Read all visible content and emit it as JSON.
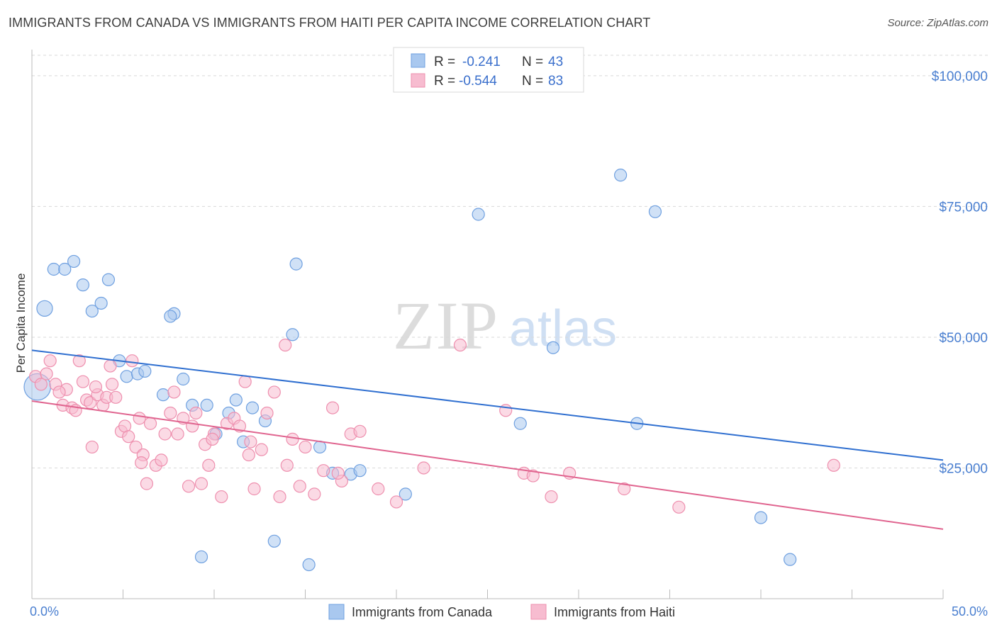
{
  "title": "IMMIGRANTS FROM CANADA VS IMMIGRANTS FROM HAITI PER CAPITA INCOME CORRELATION CHART",
  "source": "Source: ZipAtlas.com",
  "watermark": {
    "zip": "ZIP",
    "atlas": "atlas"
  },
  "legend": {
    "r_label": "R =",
    "n_label": "N =",
    "canada": {
      "r": "-0.241",
      "n": "43"
    },
    "haiti": {
      "r": "-0.544",
      "n": "83"
    }
  },
  "colors": {
    "canada_fill": "#a9c8ef",
    "canada_stroke": "#6fa0e0",
    "canada_line": "#2f6fd0",
    "haiti_fill": "#f7bcd0",
    "haiti_stroke": "#ee8fae",
    "haiti_line": "#e0648f"
  },
  "chart_data": {
    "type": "scatter",
    "title": "IMMIGRANTS FROM CANADA VS IMMIGRANTS FROM HAITI PER CAPITA INCOME CORRELATION CHART",
    "xlabel": "",
    "ylabel": "Per Capita Income",
    "xlim": [
      0,
      50
    ],
    "ylim": [
      0,
      105000
    ],
    "x_tick_labels": [
      "0.0%",
      "50.0%"
    ],
    "y_ticks": [
      25000,
      50000,
      75000,
      100000
    ],
    "y_tick_labels": [
      "$25,000",
      "$50,000",
      "$75,000",
      "$100,000"
    ],
    "series": [
      {
        "name": "Immigrants from Canada",
        "r": -0.241,
        "n": 43,
        "trend": {
          "x": [
            0,
            50
          ],
          "y": [
            47500,
            26500
          ]
        },
        "points": [
          [
            0.3,
            40500,
            2.2
          ],
          [
            0.7,
            55500,
            1.3
          ],
          [
            1.2,
            63000,
            1
          ],
          [
            1.8,
            63000,
            1
          ],
          [
            2.3,
            64500,
            1
          ],
          [
            2.8,
            60000,
            1
          ],
          [
            3.3,
            55000,
            1
          ],
          [
            3.8,
            56500,
            1
          ],
          [
            4.2,
            61000,
            1
          ],
          [
            4.8,
            45500,
            1
          ],
          [
            5.2,
            42500,
            1
          ],
          [
            5.8,
            43000,
            1
          ],
          [
            6.2,
            43500,
            1
          ],
          [
            7.2,
            39000,
            1
          ],
          [
            7.8,
            54500,
            1
          ],
          [
            7.6,
            54000,
            1
          ],
          [
            8.3,
            42000,
            1
          ],
          [
            8.8,
            37000,
            1
          ],
          [
            9.6,
            37000,
            1
          ],
          [
            9.3,
            8000,
            1
          ],
          [
            10.1,
            31500,
            1
          ],
          [
            10.8,
            35500,
            1
          ],
          [
            11.2,
            38000,
            1
          ],
          [
            11.6,
            30000,
            1
          ],
          [
            12.1,
            36500,
            1
          ],
          [
            12.8,
            34000,
            1
          ],
          [
            13.3,
            11000,
            1
          ],
          [
            14.3,
            50500,
            1
          ],
          [
            14.5,
            64000,
            1
          ],
          [
            15.2,
            6500,
            1
          ],
          [
            15.8,
            29000,
            1
          ],
          [
            16.5,
            24000,
            1
          ],
          [
            17.5,
            23800,
            1
          ],
          [
            18.0,
            24500,
            1
          ],
          [
            20.5,
            20000,
            1
          ],
          [
            24.5,
            73500,
            1
          ],
          [
            26.8,
            33500,
            1
          ],
          [
            28.6,
            48000,
            1
          ],
          [
            32.3,
            81000,
            1
          ],
          [
            33.2,
            33500,
            1
          ],
          [
            34.2,
            74000,
            1
          ],
          [
            40.0,
            15500,
            1
          ],
          [
            41.6,
            7500,
            1
          ]
        ]
      },
      {
        "name": "Immigrants from Haiti",
        "r": -0.544,
        "n": 83,
        "trend": {
          "x": [
            0,
            50
          ],
          "y": [
            37800,
            13300
          ]
        },
        "points": [
          [
            0.2,
            42500,
            1
          ],
          [
            0.5,
            41000,
            1
          ],
          [
            0.8,
            43000,
            1
          ],
          [
            1.0,
            45500,
            1
          ],
          [
            1.3,
            41000,
            1
          ],
          [
            1.7,
            37000,
            1
          ],
          [
            1.9,
            40000,
            1
          ],
          [
            2.2,
            36500,
            1
          ],
          [
            2.4,
            36000,
            1
          ],
          [
            2.6,
            45500,
            1
          ],
          [
            2.8,
            41500,
            1
          ],
          [
            3.0,
            38000,
            1
          ],
          [
            3.2,
            37500,
            1
          ],
          [
            3.3,
            29000,
            1
          ],
          [
            3.6,
            39000,
            1
          ],
          [
            3.9,
            37000,
            1
          ],
          [
            4.1,
            38500,
            1
          ],
          [
            4.3,
            44500,
            1
          ],
          [
            4.4,
            41000,
            1
          ],
          [
            4.6,
            38500,
            1
          ],
          [
            4.9,
            32000,
            1
          ],
          [
            5.1,
            33000,
            1
          ],
          [
            5.3,
            31000,
            1
          ],
          [
            5.5,
            45500,
            1
          ],
          [
            5.7,
            29000,
            1
          ],
          [
            5.9,
            34500,
            1
          ],
          [
            6.1,
            27500,
            1
          ],
          [
            6.3,
            22000,
            1
          ],
          [
            6.5,
            33500,
            1
          ],
          [
            6.8,
            25500,
            1
          ],
          [
            7.1,
            26500,
            1
          ],
          [
            7.3,
            31500,
            1
          ],
          [
            7.6,
            35500,
            1
          ],
          [
            7.8,
            39500,
            1
          ],
          [
            8.0,
            31500,
            1
          ],
          [
            8.3,
            34500,
            1
          ],
          [
            8.6,
            21500,
            1
          ],
          [
            8.8,
            33000,
            1
          ],
          [
            9.0,
            35500,
            1
          ],
          [
            9.3,
            22000,
            1
          ],
          [
            9.5,
            29500,
            1
          ],
          [
            9.7,
            25500,
            1
          ],
          [
            10.0,
            31500,
            1
          ],
          [
            10.4,
            19500,
            1
          ],
          [
            10.7,
            33500,
            1
          ],
          [
            11.1,
            34500,
            1
          ],
          [
            11.4,
            33000,
            1
          ],
          [
            11.7,
            41500,
            1
          ],
          [
            11.9,
            27500,
            1
          ],
          [
            12.2,
            21000,
            1
          ],
          [
            12.6,
            28500,
            1
          ],
          [
            12.9,
            35500,
            1
          ],
          [
            13.3,
            39500,
            1
          ],
          [
            13.6,
            19500,
            1
          ],
          [
            13.9,
            48500,
            1
          ],
          [
            14.3,
            30500,
            1
          ],
          [
            14.7,
            21500,
            1
          ],
          [
            15.0,
            29000,
            1
          ],
          [
            15.5,
            20000,
            1
          ],
          [
            16.0,
            24500,
            1
          ],
          [
            16.5,
            36500,
            1
          ],
          [
            17.0,
            22500,
            1
          ],
          [
            17.5,
            31500,
            1
          ],
          [
            18.0,
            32000,
            1
          ],
          [
            19.0,
            21000,
            1
          ],
          [
            20.0,
            18500,
            1
          ],
          [
            21.5,
            25000,
            1
          ],
          [
            23.5,
            48500,
            1
          ],
          [
            26.0,
            36000,
            1
          ],
          [
            27.0,
            24000,
            1
          ],
          [
            27.5,
            23500,
            1
          ],
          [
            28.5,
            19500,
            1
          ],
          [
            29.5,
            24000,
            1
          ],
          [
            32.5,
            21000,
            1
          ],
          [
            35.5,
            17500,
            1
          ],
          [
            44.0,
            25500,
            1
          ],
          [
            1.5,
            39500,
            1
          ],
          [
            3.5,
            40500,
            1
          ],
          [
            6.0,
            26000,
            1
          ],
          [
            9.9,
            30500,
            1
          ],
          [
            12.0,
            30000,
            1
          ],
          [
            14.0,
            25500,
            1
          ],
          [
            16.8,
            24000,
            1
          ]
        ]
      }
    ]
  },
  "bottom_legend": {
    "canada": "Immigrants from Canada",
    "haiti": "Immigrants from Haiti"
  }
}
